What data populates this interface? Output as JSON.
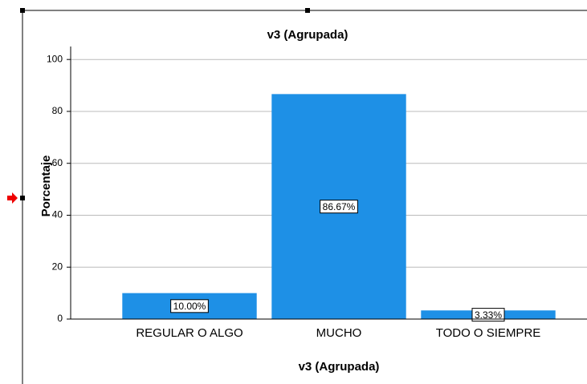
{
  "chart_data": {
    "type": "bar",
    "title": "v3 (Agrupada)",
    "x_label": "v3 (Agrupada)",
    "y_label": "Porcentaje",
    "categories": [
      "REGULAR O ALGO",
      "MUCHO",
      "TODO O SIEMPRE"
    ],
    "values": [
      10,
      86.67,
      3.33
    ],
    "value_labels": [
      "10.00%",
      "86.67%",
      "3.33%"
    ],
    "color": "#1e90e6",
    "ylim": [
      0,
      105
    ],
    "yticks": [
      0,
      20,
      40,
      60,
      80,
      100
    ],
    "grid": true
  }
}
